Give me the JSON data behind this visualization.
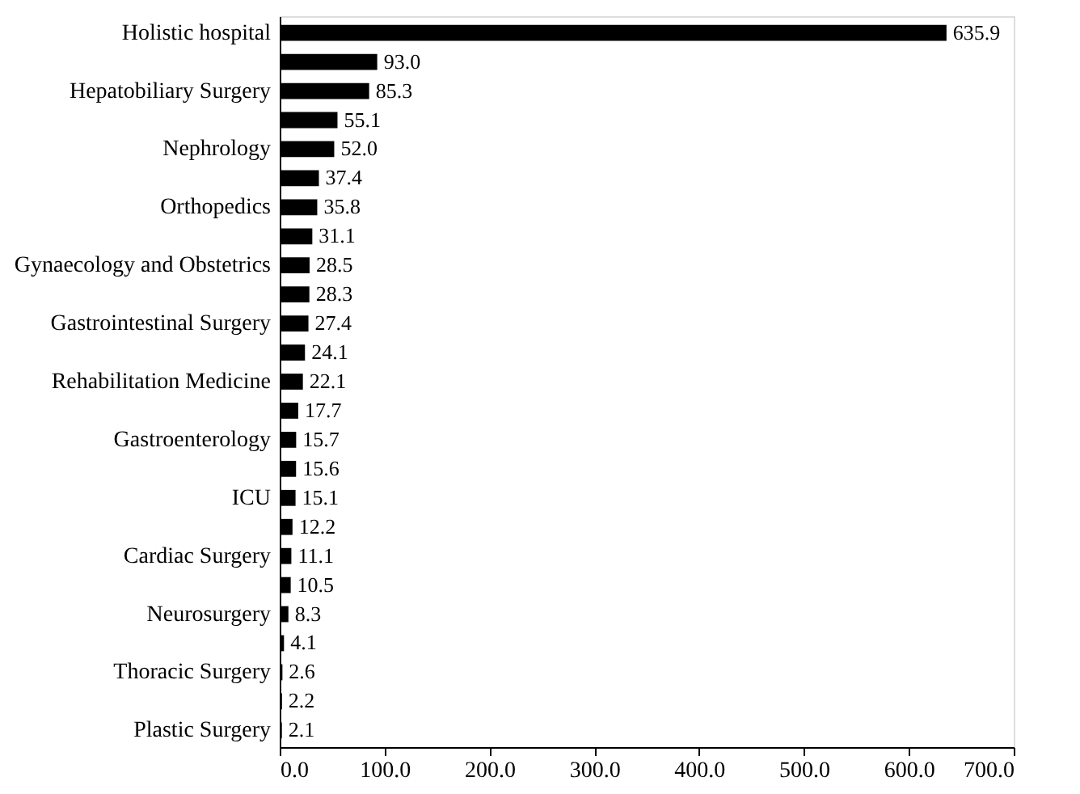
{
  "chart_data": {
    "type": "bar",
    "orientation": "horizontal",
    "grid": false,
    "value_labels": [
      "635.9",
      "93.0",
      "85.3",
      "55.1",
      "52.0",
      "37.4",
      "35.8",
      "31.1",
      "28.5",
      "28.3",
      "27.4",
      "24.1",
      "22.1",
      "17.7",
      "15.7",
      "15.6",
      "15.1",
      "12.2",
      "11.1",
      "10.5",
      "8.3",
      "4.1",
      "2.6",
      "2.2",
      "2.1"
    ],
    "categories": [
      "Holistic hospital",
      null,
      "Hepatobiliary  Surgery",
      null,
      "Nephrology",
      null,
      "Orthopedics",
      null,
      "Gynaecology and Obstetrics",
      null,
      "Gastrointestinal Surgery",
      null,
      "Rehabilitation Medicine",
      null,
      "Gastroenterology",
      null,
      "ICU",
      null,
      "Cardiac Surgery",
      null,
      "Neurosurgery",
      null,
      "Thoracic Surgery",
      null,
      "Plastic Surgery"
    ],
    "values": [
      635.9,
      93.0,
      85.3,
      55.1,
      52.0,
      37.4,
      35.8,
      31.1,
      28.5,
      28.3,
      27.4,
      24.1,
      22.1,
      17.7,
      15.7,
      15.6,
      15.1,
      12.2,
      11.1,
      10.5,
      8.3,
      4.1,
      2.6,
      2.2,
      2.1
    ],
    "color": "#000000",
    "xlim": [
      0,
      700
    ],
    "xticks": [
      {
        "value": 0,
        "label": "0.0"
      },
      {
        "value": 100,
        "label": "100.0"
      },
      {
        "value": 200,
        "label": "200.0"
      },
      {
        "value": 300,
        "label": "300.0"
      },
      {
        "value": 400,
        "label": "400.0"
      },
      {
        "value": 500,
        "label": "500.0"
      },
      {
        "value": 600,
        "label": "600.0"
      },
      {
        "value": 700,
        "label": "700.0"
      }
    ]
  }
}
